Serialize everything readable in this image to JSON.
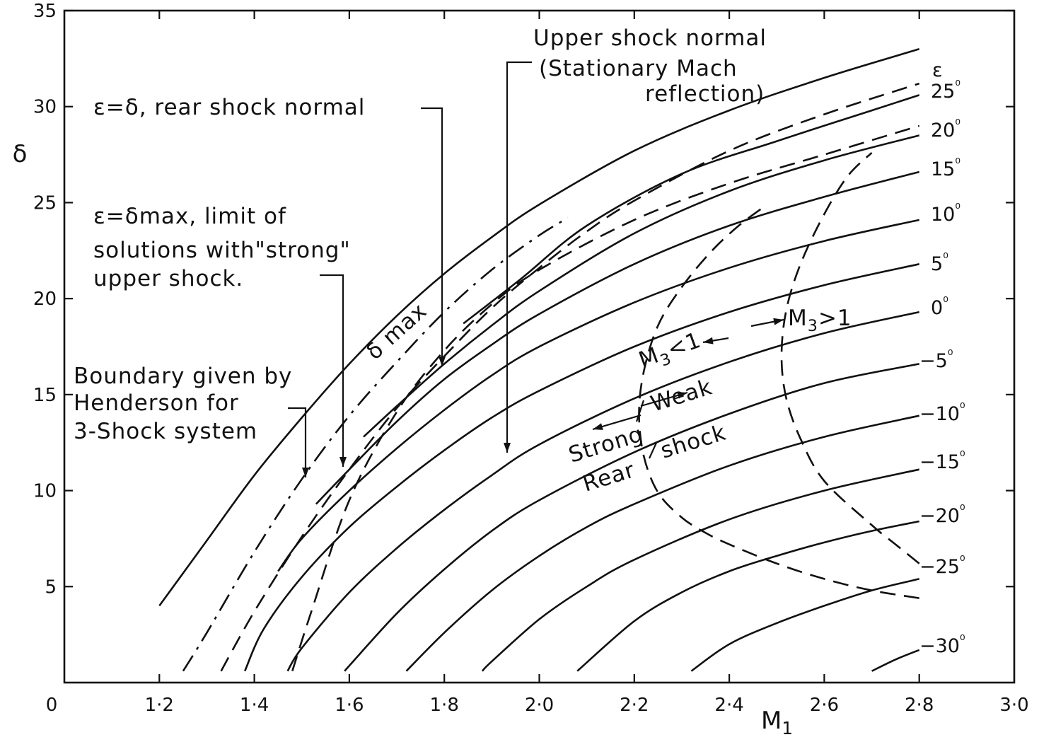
{
  "chart_data": {
    "type": "line",
    "xlabel": "M1",
    "xlabel_sub": "1",
    "ylabel": "δ",
    "xlim": [
      1.0,
      3.0
    ],
    "ylim": [
      0,
      35
    ],
    "x_tick_labels": [
      "0",
      "1·2",
      "1·4",
      "1·6",
      "1·8",
      "2·0",
      "2·2",
      "2·4",
      "2·6",
      "2·8",
      "3·0"
    ],
    "y_tick_labels": [
      "5",
      "10",
      "15",
      "20",
      "25",
      "30",
      "35"
    ],
    "epsilon_symbol": "ε",
    "epsilon_series": [
      {
        "name": "25°",
        "label": "25⁰",
        "x": [
          1.84,
          1.96,
          2.1,
          2.3,
          2.5,
          2.7,
          2.8
        ],
        "y": [
          18.7,
          21.0,
          23.8,
          26.5,
          28.2,
          29.8,
          30.6
        ]
      },
      {
        "name": "20°",
        "label": "20⁰",
        "x": [
          1.63,
          1.7,
          1.8,
          1.9,
          2.0,
          2.2,
          2.4,
          2.6,
          2.8
        ],
        "y": [
          12.8,
          14.4,
          16.6,
          18.6,
          20.4,
          23.4,
          25.6,
          27.2,
          28.5
        ]
      },
      {
        "name": "15°",
        "label": "15⁰",
        "x": [
          1.53,
          1.6,
          1.7,
          1.8,
          1.9,
          2.0,
          2.2,
          2.4,
          2.6,
          2.8
        ],
        "y": [
          9.3,
          11.1,
          13.6,
          15.8,
          17.6,
          19.2,
          21.8,
          23.8,
          25.3,
          26.6
        ]
      },
      {
        "name": "10°",
        "label": "10⁰",
        "x": [
          1.45,
          1.5,
          1.6,
          1.7,
          1.8,
          1.9,
          2.0,
          2.2,
          2.4,
          2.6,
          2.8
        ],
        "y": [
          5.8,
          7.5,
          10.0,
          12.2,
          14.2,
          16.0,
          17.5,
          19.8,
          21.6,
          23.0,
          24.1
        ]
      },
      {
        "name": "5°",
        "label": "5⁰",
        "x": [
          1.38,
          1.42,
          1.5,
          1.6,
          1.7,
          1.8,
          1.9,
          2.0,
          2.2,
          2.4,
          2.6,
          2.8
        ],
        "y": [
          0.6,
          2.8,
          5.5,
          8.1,
          10.2,
          12.1,
          13.8,
          15.2,
          17.5,
          19.3,
          20.7,
          21.8
        ]
      },
      {
        "name": "0°",
        "label": "0⁰",
        "x": [
          1.47,
          1.5,
          1.6,
          1.7,
          1.8,
          1.9,
          2.0,
          2.2,
          2.4,
          2.6,
          2.8
        ],
        "y": [
          0.6,
          1.8,
          4.7,
          7.0,
          9.0,
          10.8,
          12.4,
          14.8,
          16.7,
          18.2,
          19.3
        ]
      },
      {
        "name": "-5°",
        "label": "-5⁰",
        "x": [
          1.59,
          1.7,
          1.8,
          1.9,
          2.0,
          2.2,
          2.4,
          2.6,
          2.8
        ],
        "y": [
          0.6,
          3.6,
          5.9,
          7.9,
          9.5,
          12.0,
          14.0,
          15.6,
          16.6
        ]
      },
      {
        "name": "-10°",
        "label": "-10⁰",
        "x": [
          1.72,
          1.8,
          1.9,
          2.0,
          2.1,
          2.2,
          2.4,
          2.6,
          2.8
        ],
        "y": [
          0.6,
          2.6,
          4.8,
          6.6,
          8.1,
          9.3,
          11.3,
          12.8,
          13.9
        ]
      },
      {
        "name": "-15°",
        "label": "-15⁰",
        "x": [
          1.88,
          1.9,
          2.0,
          2.1,
          2.2,
          2.4,
          2.6,
          2.8
        ],
        "y": [
          0.6,
          1.1,
          3.3,
          5.0,
          6.4,
          8.5,
          10.0,
          11.1
        ]
      },
      {
        "name": "-20°",
        "label": "-20⁰",
        "x": [
          2.08,
          2.2,
          2.3,
          2.4,
          2.5,
          2.6,
          2.7,
          2.8
        ],
        "y": [
          0.6,
          3.2,
          4.7,
          5.8,
          6.6,
          7.3,
          7.9,
          8.4
        ]
      },
      {
        "name": "-25°",
        "label": "-25⁰",
        "x": [
          2.32,
          2.4,
          2.5,
          2.6,
          2.7,
          2.8
        ],
        "y": [
          0.6,
          2.0,
          3.1,
          4.0,
          4.8,
          5.4
        ]
      },
      {
        "name": "-30°",
        "label": "-30⁰",
        "x": [
          2.7,
          2.75,
          2.8
        ],
        "y": [
          0.6,
          1.2,
          1.7
        ]
      }
    ],
    "delta_max": {
      "label": "δ max",
      "x": [
        1.2,
        1.3,
        1.4,
        1.5,
        1.6,
        1.7,
        1.8,
        1.9,
        2.0,
        2.2,
        2.4,
        2.6,
        2.8
      ],
      "y": [
        4.0,
        7.4,
        10.8,
        13.8,
        16.6,
        19.1,
        21.3,
        23.2,
        24.9,
        27.7,
        29.8,
        31.5,
        33.0
      ]
    },
    "dashed_rear_shock_normal": {
      "x": [
        1.33,
        1.4,
        1.5,
        1.6,
        1.7,
        1.8,
        1.9,
        2.0,
        2.1,
        2.2,
        2.4,
        2.6,
        2.8
      ],
      "y": [
        0.6,
        3.7,
        7.6,
        11.1,
        14.3,
        17.0,
        19.5,
        21.6,
        23.5,
        25.1,
        27.7,
        29.6,
        31.2
      ]
    },
    "dashdot_delta_max_limit": {
      "x": [
        1.25,
        1.3,
        1.4,
        1.5,
        1.6,
        1.7,
        1.8,
        1.9,
        2.0,
        2.06
      ],
      "y": [
        0.6,
        2.6,
        6.8,
        10.6,
        13.9,
        16.7,
        19.3,
        21.5,
        23.3,
        24.2
      ]
    },
    "dashed_upper_shock_normal": {
      "x": [
        1.48,
        1.52,
        1.6,
        1.7,
        1.8,
        1.9,
        2.0,
        2.2,
        2.4,
        2.6,
        2.8
      ],
      "y": [
        0.6,
        3.7,
        9.5,
        14.1,
        17.3,
        19.7,
        21.5,
        24.1,
        26.0,
        27.5,
        29.0
      ]
    },
    "dashed_M3_equals_1": {
      "x": [
        2.8,
        2.7,
        2.6,
        2.5,
        2.4,
        2.35,
        2.3,
        2.25,
        2.22,
        2.21,
        2.22,
        2.25,
        2.3,
        2.36,
        2.42,
        2.48
      ],
      "y": [
        4.4,
        4.8,
        5.4,
        6.2,
        7.2,
        7.8,
        8.6,
        9.9,
        11.8,
        14.0,
        16.2,
        18.6,
        20.6,
        22.4,
        23.8,
        24.9
      ]
    },
    "dashed_strong_weak_boundary": {
      "x": [
        2.8,
        2.75,
        2.7,
        2.6,
        2.55,
        2.52,
        2.51,
        2.52,
        2.55,
        2.6,
        2.65,
        2.7
      ],
      "y": [
        6.2,
        7.2,
        8.2,
        10.5,
        12.7,
        14.8,
        17.0,
        19.4,
        21.8,
        24.4,
        26.4,
        27.6
      ]
    },
    "annotations": {
      "upper_shock_normal": [
        "Upper shock normal",
        "(Stationary Mach",
        "reflection)"
      ],
      "rear_shock_normal": "ε=δ, rear shock normal",
      "delta_max_limit": [
        "ε=δmax, limit of",
        "solutions with\"strong\"",
        "upper shock."
      ],
      "henderson_boundary": [
        "Boundary given by",
        "Henderson for",
        "3-Shock system"
      ],
      "m3_less": "M3<1",
      "m3_greater": "M3>1",
      "strong": "Strong",
      "weak": "Weak",
      "rear": "Rear",
      "shock": "shock"
    }
  }
}
